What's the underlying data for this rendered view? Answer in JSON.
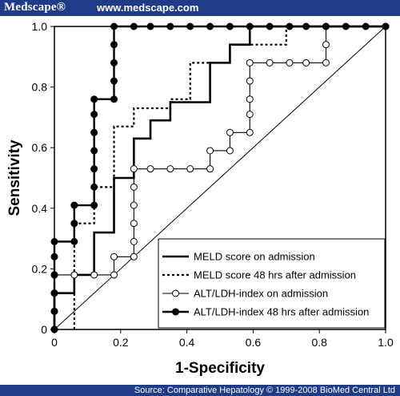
{
  "header": {
    "brand": "Medscape®",
    "url": "www.medscape.com"
  },
  "footer": {
    "source": "Source: Comparative Hepatology © 1999-2008 BioMed Central Ltd"
  },
  "chart_data": {
    "type": "line",
    "xlabel": "1-Specificity",
    "ylabel": "Sensitivity",
    "xlim": [
      0,
      1
    ],
    "ylim": [
      0,
      1
    ],
    "x_ticks": [
      "0",
      "0.2",
      "0.4",
      "0.6",
      "0.8",
      "1.0"
    ],
    "y_ticks": [
      "0",
      "0.2",
      "0.4",
      "0.6",
      "0.8",
      "1.0"
    ],
    "grid": false,
    "legend_position": "bottom-right",
    "reference_line": [
      [
        0,
        0
      ],
      [
        1,
        1
      ]
    ],
    "series": [
      {
        "name": "MELD score on admission",
        "style": "solid",
        "points": [
          [
            0,
            0
          ],
          [
            0,
            0.12
          ],
          [
            0.06,
            0.12
          ],
          [
            0.06,
            0.18
          ],
          [
            0.12,
            0.18
          ],
          [
            0.12,
            0.32
          ],
          [
            0.18,
            0.32
          ],
          [
            0.18,
            0.5
          ],
          [
            0.24,
            0.5
          ],
          [
            0.24,
            0.63
          ],
          [
            0.29,
            0.63
          ],
          [
            0.29,
            0.69
          ],
          [
            0.35,
            0.69
          ],
          [
            0.35,
            0.75
          ],
          [
            0.47,
            0.75
          ],
          [
            0.47,
            0.88
          ],
          [
            0.53,
            0.88
          ],
          [
            0.53,
            0.94
          ],
          [
            0.59,
            0.94
          ],
          [
            0.59,
            1.0
          ],
          [
            1.0,
            1.0
          ]
        ]
      },
      {
        "name": "MELD score 48 hrs after admission",
        "style": "dotted",
        "points": [
          [
            0.06,
            0
          ],
          [
            0.06,
            0.35
          ],
          [
            0.12,
            0.35
          ],
          [
            0.12,
            0.47
          ],
          [
            0.18,
            0.47
          ],
          [
            0.18,
            0.67
          ],
          [
            0.24,
            0.67
          ],
          [
            0.24,
            0.73
          ],
          [
            0.35,
            0.73
          ],
          [
            0.35,
            0.76
          ],
          [
            0.41,
            0.76
          ],
          [
            0.41,
            0.88
          ],
          [
            0.53,
            0.88
          ],
          [
            0.53,
            0.94
          ],
          [
            0.7,
            0.94
          ],
          [
            0.7,
            1.0
          ],
          [
            1.0,
            1.0
          ]
        ]
      },
      {
        "name": "ALT/LDH-index on admission",
        "style": "open-circle",
        "points": [
          [
            0,
            0
          ],
          [
            0,
            0.06
          ],
          [
            0,
            0.12
          ],
          [
            0,
            0.18
          ],
          [
            0.06,
            0.18
          ],
          [
            0.12,
            0.18
          ],
          [
            0.18,
            0.18
          ],
          [
            0.18,
            0.24
          ],
          [
            0.24,
            0.24
          ],
          [
            0.24,
            0.29
          ],
          [
            0.24,
            0.35
          ],
          [
            0.24,
            0.41
          ],
          [
            0.24,
            0.47
          ],
          [
            0.24,
            0.53
          ],
          [
            0.29,
            0.53
          ],
          [
            0.35,
            0.53
          ],
          [
            0.41,
            0.53
          ],
          [
            0.47,
            0.53
          ],
          [
            0.47,
            0.59
          ],
          [
            0.53,
            0.59
          ],
          [
            0.53,
            0.65
          ],
          [
            0.59,
            0.65
          ],
          [
            0.59,
            0.71
          ],
          [
            0.59,
            0.76
          ],
          [
            0.59,
            0.82
          ],
          [
            0.59,
            0.88
          ],
          [
            0.65,
            0.88
          ],
          [
            0.71,
            0.88
          ],
          [
            0.76,
            0.88
          ],
          [
            0.82,
            0.88
          ],
          [
            0.82,
            0.94
          ],
          [
            0.82,
            1.0
          ],
          [
            1.0,
            1.0
          ]
        ]
      },
      {
        "name": "ALT/LDH-index 48 hrs after admission",
        "style": "filled-circle",
        "points": [
          [
            0,
            0
          ],
          [
            0,
            0.06
          ],
          [
            0,
            0.12
          ],
          [
            0,
            0.18
          ],
          [
            0,
            0.24
          ],
          [
            0,
            0.29
          ],
          [
            0.06,
            0.29
          ],
          [
            0.06,
            0.35
          ],
          [
            0.06,
            0.41
          ],
          [
            0.12,
            0.41
          ],
          [
            0.12,
            0.47
          ],
          [
            0.12,
            0.53
          ],
          [
            0.12,
            0.59
          ],
          [
            0.12,
            0.65
          ],
          [
            0.12,
            0.71
          ],
          [
            0.12,
            0.76
          ],
          [
            0.18,
            0.76
          ],
          [
            0.18,
            0.82
          ],
          [
            0.18,
            0.88
          ],
          [
            0.18,
            0.94
          ],
          [
            0.18,
            1.0
          ],
          [
            0.24,
            1.0
          ],
          [
            0.29,
            1.0
          ],
          [
            0.35,
            1.0
          ],
          [
            0.41,
            1.0
          ],
          [
            0.47,
            1.0
          ],
          [
            0.53,
            1.0
          ],
          [
            0.59,
            1.0
          ],
          [
            0.65,
            1.0
          ],
          [
            0.71,
            1.0
          ],
          [
            0.76,
            1.0
          ],
          [
            0.82,
            1.0
          ],
          [
            0.88,
            1.0
          ],
          [
            0.94,
            1.0
          ],
          [
            1.0,
            1.0
          ]
        ]
      }
    ]
  }
}
